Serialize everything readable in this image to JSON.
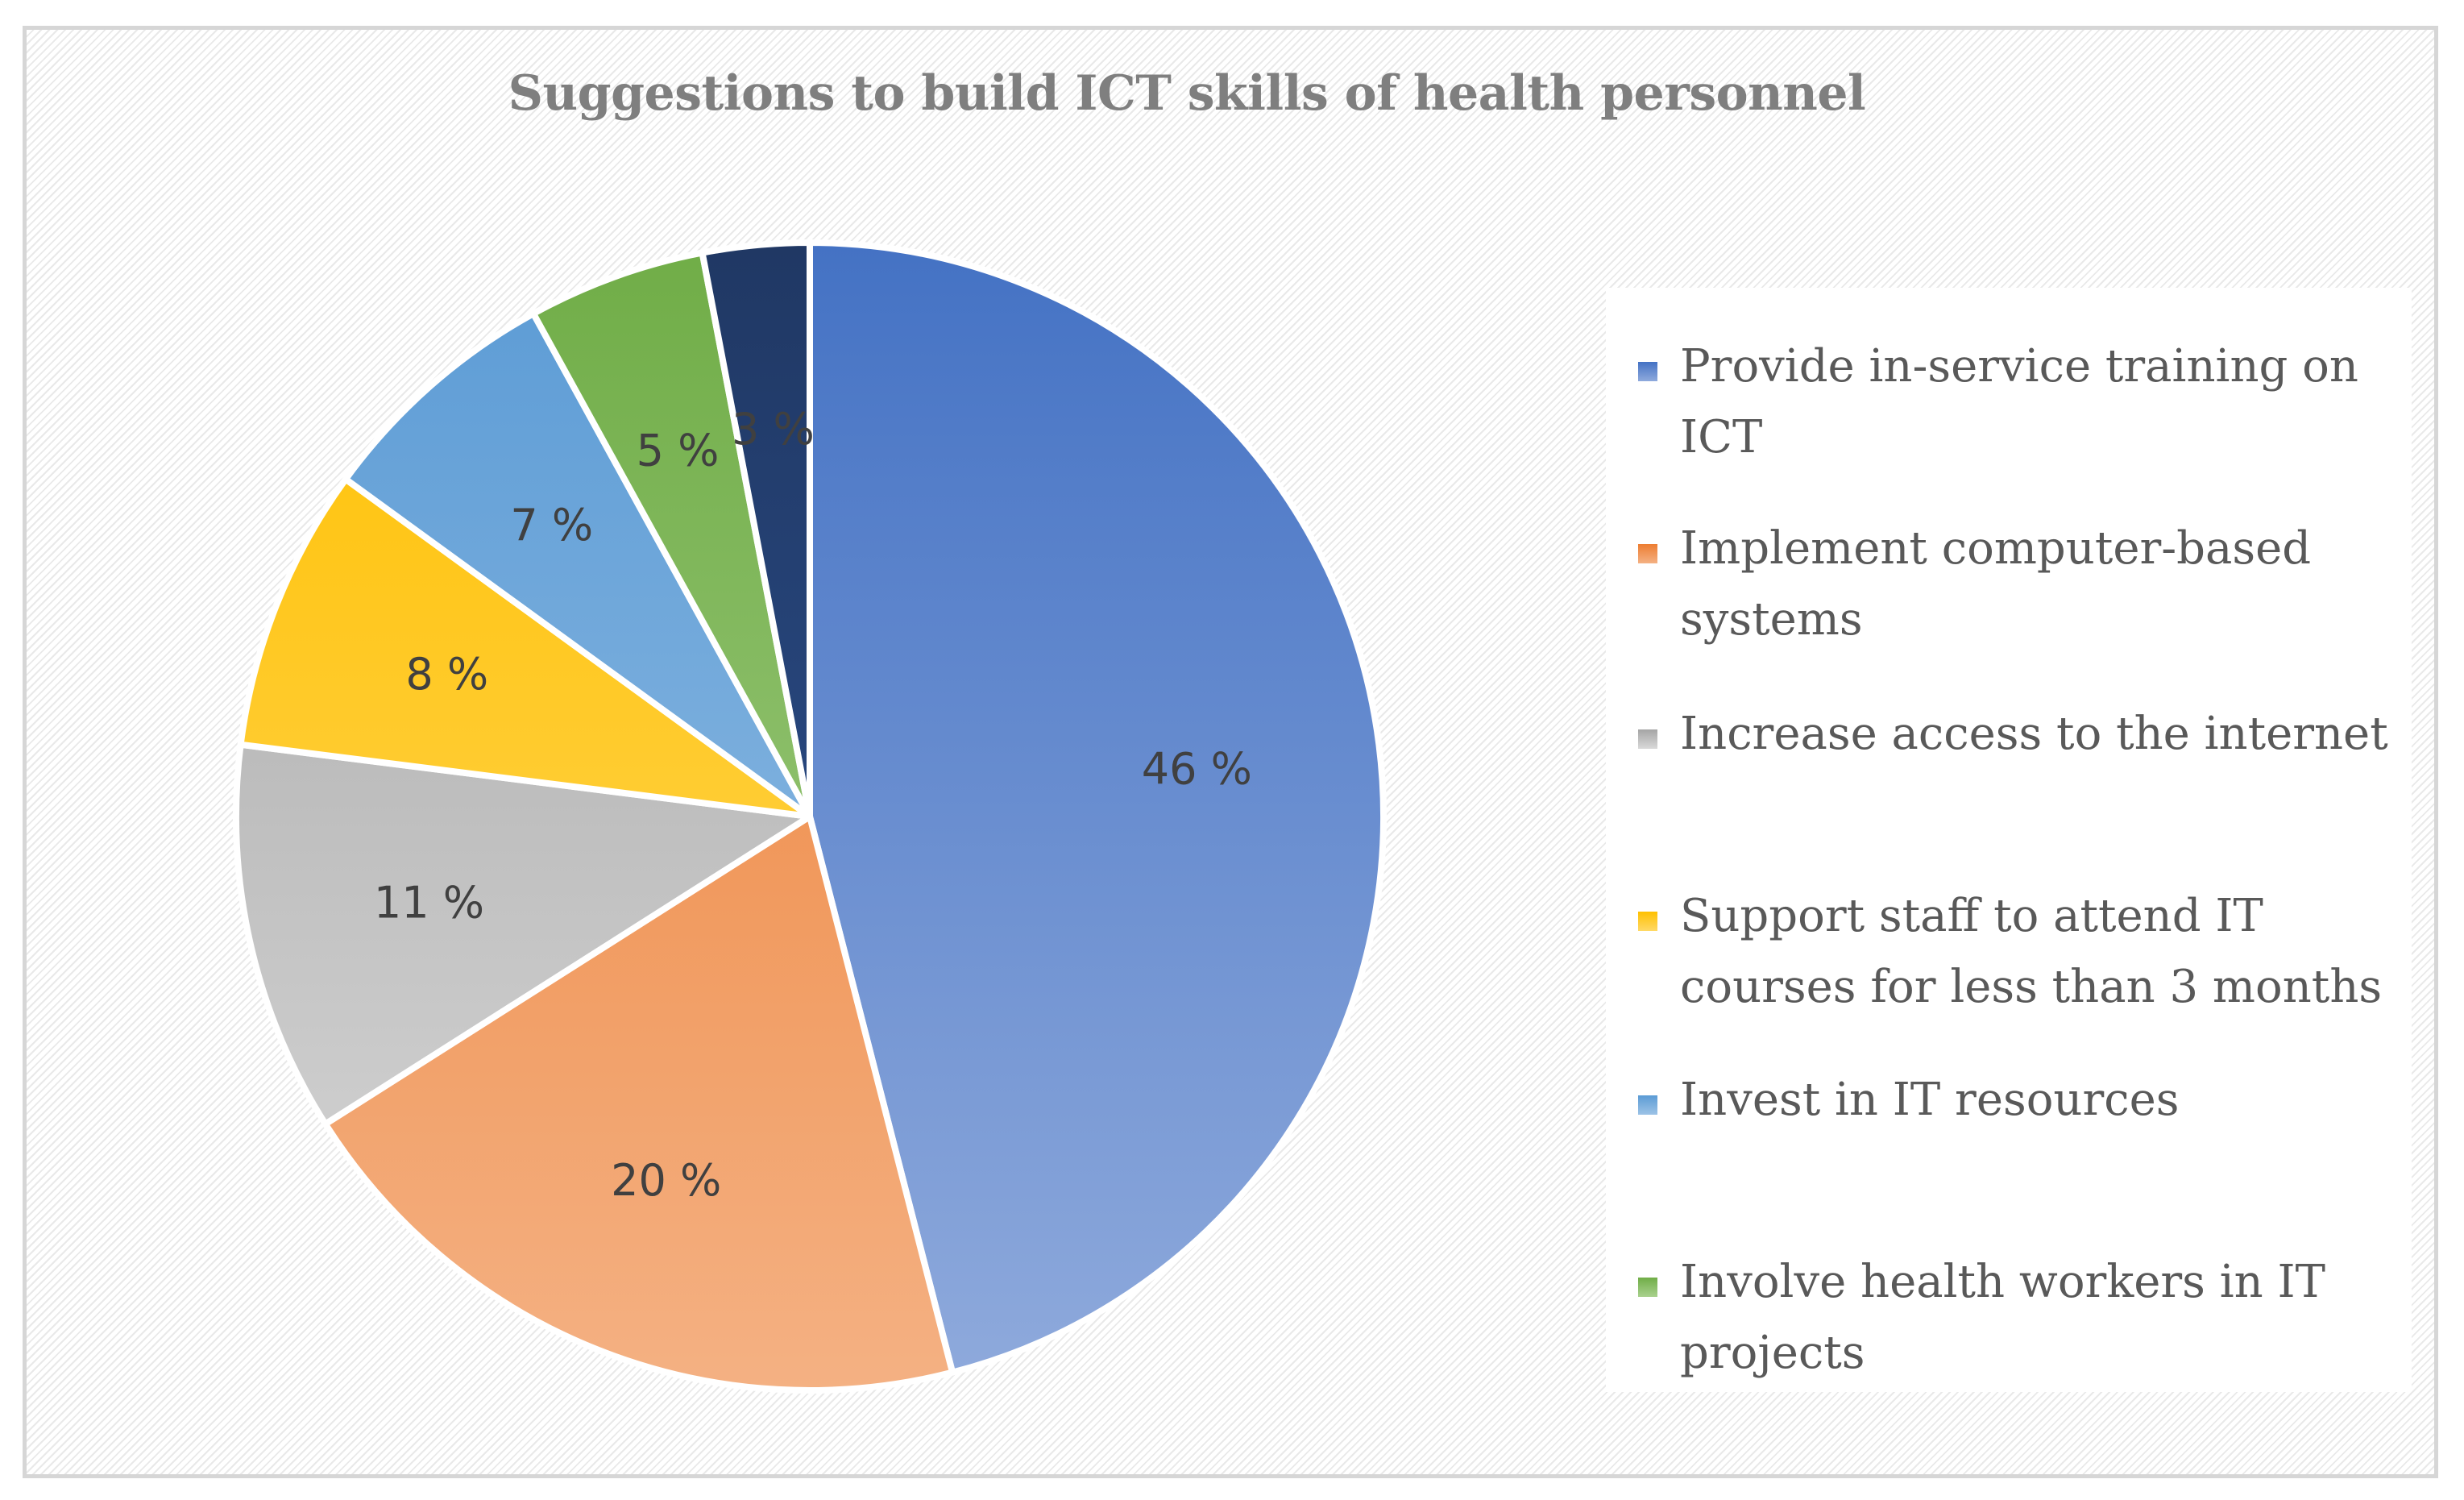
{
  "chart_data": {
    "type": "pie",
    "title": "Suggestions to build ICT skills of health personnel",
    "start_angle_deg": 0,
    "direction": "clockwise",
    "slices": [
      {
        "label": "Provide in-service training on ICT",
        "value": 46,
        "display": "46 %",
        "color_light": "#8faadc",
        "color_dark": "#4472c4"
      },
      {
        "label": "Implement computer-based systems",
        "value": 20,
        "display": "20 %",
        "color_light": "#f4b183",
        "color_dark": "#ed7d31"
      },
      {
        "label": "Increase access to the internet",
        "value": 11,
        "display": "11 %",
        "color_light": "#d9d9d9",
        "color_dark": "#a5a5a5"
      },
      {
        "label": "Support staff to attend IT courses for less than 3 months",
        "value": 8,
        "display": "8 %",
        "color_light": "#ffd966",
        "color_dark": "#ffc000"
      },
      {
        "label": "Invest in IT resources",
        "value": 7,
        "display": "7 %",
        "color_light": "#9dc3e6",
        "color_dark": "#5b9bd5"
      },
      {
        "label": "Involve health workers in IT projects",
        "value": 5,
        "display": "5 %",
        "color_light": "#a9d18e",
        "color_dark": "#70ad47"
      },
      {
        "label": "",
        "value": 3,
        "display": "3 %",
        "color_light": "#2f5597",
        "color_dark": "#203864"
      }
    ],
    "legend_position": "right"
  }
}
